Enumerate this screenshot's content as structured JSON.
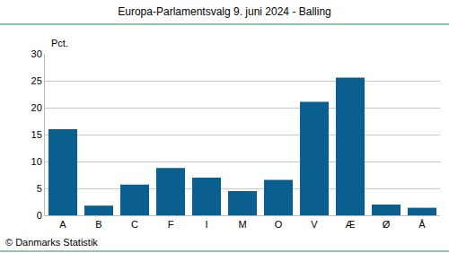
{
  "chart_data": {
    "type": "bar",
    "title": "Europa-Parlamentsvalg 9. juni 2024 - Balling",
    "ylabel": "Pct.",
    "annotations": [
      "© Danmarks Statistik"
    ],
    "categories": [
      "A",
      "B",
      "C",
      "F",
      "I",
      "M",
      "O",
      "V",
      "Æ",
      "Ø",
      "Å"
    ],
    "values": [
      16.0,
      1.8,
      5.7,
      8.8,
      7.0,
      4.5,
      6.6,
      21.1,
      25.6,
      2.0,
      1.4
    ],
    "color": "#0a5f8f",
    "ylim": [
      0,
      30
    ],
    "yticks": [
      0,
      5,
      10,
      15,
      20,
      25,
      30
    ],
    "grid": true
  }
}
